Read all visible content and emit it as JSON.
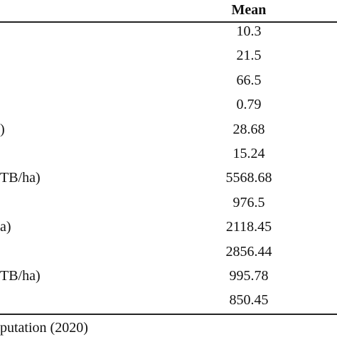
{
  "table": {
    "header": {
      "mean": "Mean"
    },
    "rows": [
      {
        "mean": "10.3"
      },
      {
        "mean": "21.5"
      },
      {
        "mean": "66.5"
      },
      {
        "mean": "0.79"
      },
      {
        "label": ")",
        "mean": "28.68"
      },
      {
        "mean": "15.24"
      },
      {
        "label": "TB/ha)",
        "mean": "5568.68"
      },
      {
        "mean": "976.5"
      },
      {
        "label": "a)",
        "mean": "2118.45"
      },
      {
        "mean": "2856.44"
      },
      {
        "label": "TB/ha)",
        "mean": "995.78"
      },
      {
        "mean": "850.45"
      }
    ],
    "note": "putation (2020)"
  }
}
